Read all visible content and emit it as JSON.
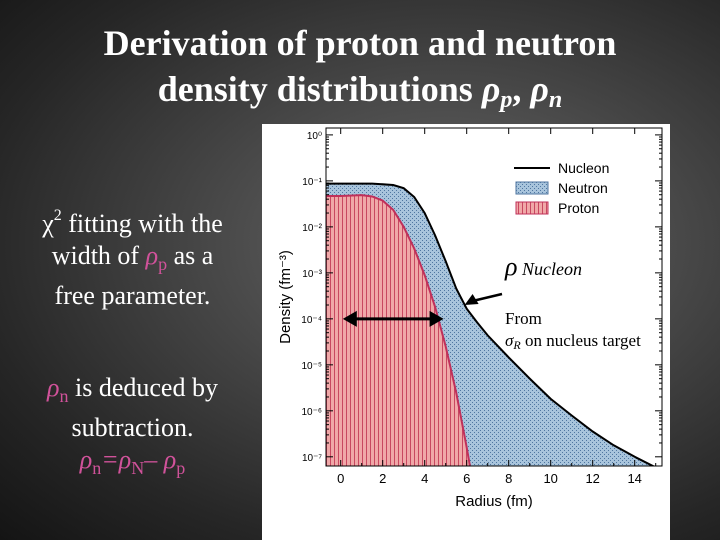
{
  "slide": {
    "title_line1": "Derivation of proton and neutron",
    "title_line2": "density distributions ",
    "title_rho1": "ρ",
    "title_sub1": "p",
    "title_sep": ", ",
    "title_rho2": "ρ",
    "title_sub2": "n"
  },
  "left_text": {
    "chi": "χ",
    "chi_sup": "2",
    "line1_rest": " fitting with the",
    "line2_pre": "width of ",
    "line2_rho": "ρ",
    "line2_sub": "p",
    "line2_post": " as a",
    "line3": "free parameter.",
    "deduced_rho": "ρ",
    "deduced_sub": "n",
    "deduced_rest": " is deduced by",
    "deduced_line2": "subtraction.",
    "eq_rho1": "ρ",
    "eq_sub1": "n",
    "eq_mid": "=ρ",
    "eq_sub2": "N",
    "eq_minus": "– ",
    "eq_rho3": "ρ",
    "eq_sub3": "p"
  },
  "annotations": {
    "rho": "ρ",
    "rho_sub": " Nucleon",
    "from": "From",
    "sigma": "σ",
    "sigma_sub": "R",
    "from_rest": " on nucleus target"
  },
  "colors": {
    "nucleon": "#000000",
    "neutron_fill": "#a8c4dc",
    "neutron_hatch": "#5a7fa8",
    "proton_fill": "#f0a8a8",
    "proton_line": "#c0305a",
    "magenta_text": "#d0529a"
  },
  "chart_data": {
    "type": "line",
    "xlabel": "Radius (fm)",
    "ylabel": "Density (fm⁻³)",
    "xlim": [
      -0.7,
      15.3
    ],
    "ylim_log10": [
      -7.2,
      0.15
    ],
    "y_scale": "log",
    "xticks": [
      0,
      2,
      4,
      6,
      8,
      10,
      12,
      14
    ],
    "yticks": [
      {
        "exp": 0,
        "label": "10⁰"
      },
      {
        "exp": -1,
        "label": "10⁻¹"
      },
      {
        "exp": -2,
        "label": "10⁻²"
      },
      {
        "exp": -3,
        "label": "10⁻³"
      },
      {
        "exp": -4,
        "label": "10⁻⁴"
      },
      {
        "exp": -5,
        "label": "10⁻⁵"
      },
      {
        "exp": -6,
        "label": "10⁻⁶"
      },
      {
        "exp": -7,
        "label": "10⁻⁷"
      }
    ],
    "legend_position": "top-right",
    "series": [
      {
        "name": "Nucleon",
        "x": [
          -0.7,
          0,
          1.5,
          2.5,
          3,
          3.5,
          4,
          4.5,
          5,
          5.5,
          6,
          6.5,
          7,
          8,
          9,
          10,
          11,
          12,
          13,
          14,
          15.3
        ],
        "y": [
          0.0871,
          0.0871,
          0.0871,
          0.0813,
          0.0692,
          0.0447,
          0.01995,
          0.00646,
          0.00178,
          0.000457,
          0.000166,
          8.32e-05,
          4.37e-05,
          1.45e-05,
          5.01e-06,
          1.82e-06,
          7.9e-07,
          3.55e-07,
          1.78e-07,
          1e-07,
          5.01e-08
        ]
      },
      {
        "name": "Neutron",
        "x": [
          -0.7,
          0,
          1.5,
          2.5,
          3,
          3.5,
          4,
          4.5,
          5,
          5.5,
          6,
          6.5,
          7,
          8,
          9,
          10,
          11,
          12,
          13,
          14,
          15.3
        ],
        "y": [
          0.0871,
          0.0871,
          0.0871,
          0.0813,
          0.0692,
          0.0447,
          0.01995,
          0.00646,
          0.00178,
          0.000457,
          0.000166,
          8.32e-05,
          4.37e-05,
          1.45e-05,
          5.01e-06,
          1.82e-06,
          7.9e-07,
          3.55e-07,
          1.78e-07,
          1e-07,
          5.01e-08
        ]
      },
      {
        "name": "Proton",
        "x": [
          -0.7,
          0,
          1,
          1.5,
          2,
          2.5,
          3,
          3.5,
          4,
          4.5,
          5,
          5.5,
          6,
          6.5,
          6.9
        ],
        "y": [
          0.0468,
          0.0468,
          0.049,
          0.0457,
          0.0372,
          0.0234,
          0.01,
          0.00339,
          0.00089,
          0.000178,
          2.51e-05,
          2.5e-06,
          1.6e-07,
          7.9e-09,
          5e-10
        ]
      }
    ]
  }
}
